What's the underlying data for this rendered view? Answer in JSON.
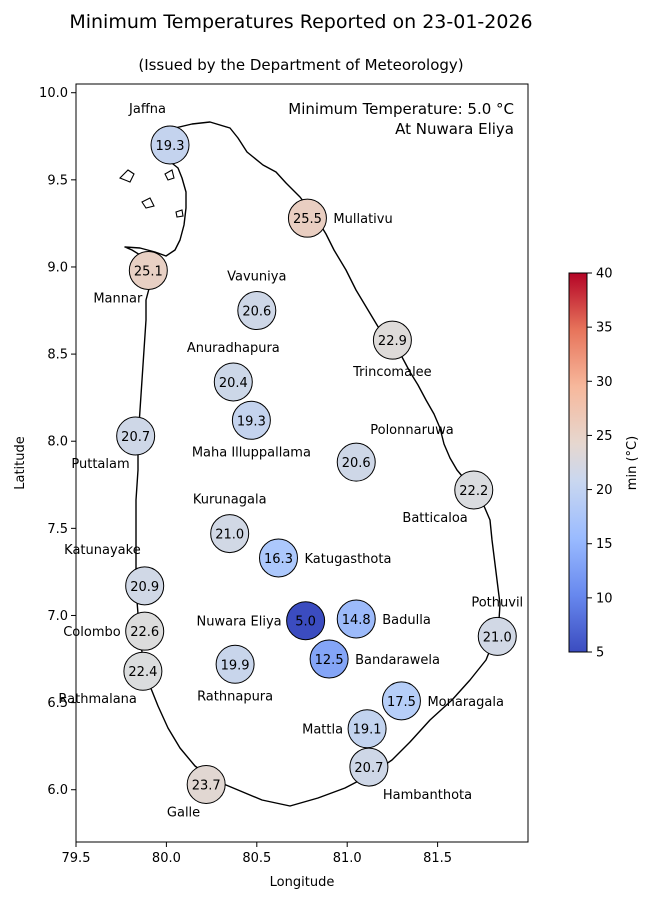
{
  "title": "Minimum Temperatures Reported on 23-01-2026",
  "subtitle": "(Issued by the Department of Meteorology)",
  "annotation": {
    "line1": "Minimum Temperature: 5.0 °C",
    "line2": "At Nuwara Eliya"
  },
  "xlabel": "Longitude",
  "ylabel": "Latitude",
  "colorbar": {
    "label": "min (°C)",
    "ticks": [
      "5",
      "10",
      "15",
      "20",
      "25",
      "30",
      "35",
      "40"
    ],
    "range": [
      5,
      40
    ],
    "colormap": "coolwarm",
    "colors": [
      "#3b4cc0",
      "#7396f5",
      "#b0cbfc",
      "#dcdddd",
      "#f6bfa6",
      "#ea7b60",
      "#b40426"
    ]
  },
  "chart_data": {
    "type": "scatter",
    "xlim": [
      79.5,
      82.0
    ],
    "ylim": [
      5.7,
      10.05
    ],
    "xticks": [
      "79.5",
      "80.0",
      "80.5",
      "81.0",
      "81.5"
    ],
    "yticks": [
      "6.0",
      "6.5",
      "7.0",
      "7.5",
      "8.0",
      "8.5",
      "9.0",
      "9.5",
      "10.0"
    ],
    "grid": false,
    "stations": [
      {
        "name": "Jaffna",
        "lon": 80.02,
        "lat": 9.7,
        "value": 19.3,
        "label_side": "above-left"
      },
      {
        "name": "Mullativu",
        "lon": 80.78,
        "lat": 9.28,
        "value": 25.5,
        "label_side": "right"
      },
      {
        "name": "Mannar",
        "lon": 79.9,
        "lat": 8.98,
        "value": 25.1,
        "label_side": "below-left"
      },
      {
        "name": "Vavuniya",
        "lon": 80.5,
        "lat": 8.75,
        "value": 20.6,
        "label_side": "above"
      },
      {
        "name": "Trincomalee",
        "lon": 81.25,
        "lat": 8.58,
        "value": 22.9,
        "label_side": "below"
      },
      {
        "name": "Anuradhapura",
        "lon": 80.37,
        "lat": 8.34,
        "value": 20.4,
        "label_side": "above"
      },
      {
        "name": "Maha Illuppallama",
        "lon": 80.47,
        "lat": 8.12,
        "value": 19.3,
        "label_side": "below"
      },
      {
        "name": "Puttalam",
        "lon": 79.83,
        "lat": 8.03,
        "value": 20.7,
        "label_side": "below-left"
      },
      {
        "name": "Polonnaruwa",
        "lon": 81.05,
        "lat": 7.88,
        "value": 20.6,
        "label_side": "above-right"
      },
      {
        "name": "Batticaloa",
        "lon": 81.7,
        "lat": 7.72,
        "value": 22.2,
        "label_side": "below-left"
      },
      {
        "name": "Kurunagala",
        "lon": 80.35,
        "lat": 7.47,
        "value": 21.0,
        "label_side": "above"
      },
      {
        "name": "Katugasthota",
        "lon": 80.62,
        "lat": 7.33,
        "value": 16.3,
        "label_side": "right"
      },
      {
        "name": "Katunayake",
        "lon": 79.88,
        "lat": 7.17,
        "value": 20.9,
        "label_side": "above-left"
      },
      {
        "name": "Nuwara Eliya",
        "lon": 80.77,
        "lat": 6.97,
        "value": 5.0,
        "label_side": "left"
      },
      {
        "name": "Badulla",
        "lon": 81.05,
        "lat": 6.98,
        "value": 14.8,
        "label_side": "right"
      },
      {
        "name": "Pothuvil",
        "lon": 81.83,
        "lat": 6.88,
        "value": 21.0,
        "label_side": "above"
      },
      {
        "name": "Colombo",
        "lon": 79.88,
        "lat": 6.91,
        "value": 22.6,
        "label_side": "left"
      },
      {
        "name": "Bandarawela",
        "lon": 80.9,
        "lat": 6.75,
        "value": 12.5,
        "label_side": "right"
      },
      {
        "name": "Rathnapura",
        "lon": 80.38,
        "lat": 6.72,
        "value": 19.9,
        "label_side": "below"
      },
      {
        "name": "Rathmalana",
        "lon": 79.87,
        "lat": 6.68,
        "value": 22.4,
        "label_side": "below-left"
      },
      {
        "name": "Monaragala",
        "lon": 81.3,
        "lat": 6.51,
        "value": 17.5,
        "label_side": "right"
      },
      {
        "name": "Mattla",
        "lon": 81.11,
        "lat": 6.35,
        "value": 19.1,
        "label_side": "left"
      },
      {
        "name": "Hambanthota",
        "lon": 81.12,
        "lat": 6.13,
        "value": 20.7,
        "label_side": "below-right"
      },
      {
        "name": "Galle",
        "lon": 80.22,
        "lat": 6.03,
        "value": 23.7,
        "label_side": "below-left"
      }
    ]
  }
}
